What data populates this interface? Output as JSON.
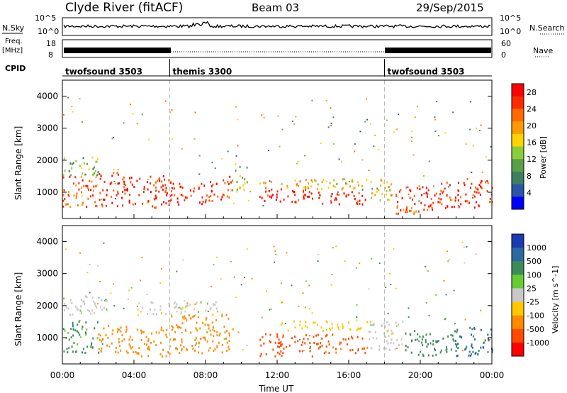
{
  "header": {
    "station": "Clyde River (fitACF)",
    "beam": "Beam 03",
    "date": "29/Sep/2015"
  },
  "side_labels": {
    "nsky": "N.Sky",
    "freq": "Freq.",
    "freq_unit": "[MHz]",
    "cpid": "CPID",
    "nsearch": "N.Search",
    "nave": "Nave"
  },
  "noise_axis": {
    "left_ticks": [
      "10^5",
      "10^0"
    ],
    "right_ticks": [
      "10^5",
      "10^0"
    ]
  },
  "freq_axis": {
    "left_ticks": [
      "18",
      "8"
    ],
    "right_ticks": [
      "60",
      "0"
    ]
  },
  "cpid_segments": [
    {
      "label": "twofsound 3503",
      "start_hour": 0,
      "end_hour": 6
    },
    {
      "label": "themis 3300",
      "start_hour": 6,
      "end_hour": 18
    },
    {
      "label": "twofsound 3503",
      "start_hour": 18,
      "end_hour": 24
    }
  ],
  "colors": {
    "power_scale": [
      "#0000ff",
      "#2a55a8",
      "#3d8060",
      "#5aa04a",
      "#8ccc3a",
      "#ffd400",
      "#ff9a00",
      "#ff6a00",
      "#ff2a00",
      "#ff0000"
    ],
    "velocity_scale": [
      "#ff0000",
      "#ff4a00",
      "#ff8a00",
      "#ffc800",
      "#c8c8c8",
      "#66cc33",
      "#3c8c5a",
      "#2a6aa0",
      "#1a3ab0"
    ]
  },
  "chart_data": [
    {
      "type": "heatmap",
      "title": "Power",
      "ylabel": "Slant Range [km]",
      "x_range_hours": [
        0,
        24
      ],
      "ylim": [
        180,
        4500
      ],
      "yticks": [
        1000,
        2000,
        3000,
        4000
      ],
      "colorbar": {
        "label": "Power [dB]",
        "ticks": [
          4,
          8,
          12,
          16,
          20,
          24,
          28
        ],
        "range": [
          0,
          30
        ]
      },
      "scatter_regions": [
        {
          "start_hour": 0.0,
          "end_hour": 2.0,
          "range_min": 500,
          "range_max": 1500,
          "value": 24
        },
        {
          "start_hour": 0.0,
          "end_hour": 2.0,
          "range_min": 1500,
          "range_max": 2100,
          "value": 12
        },
        {
          "start_hour": 2.0,
          "end_hour": 4.0,
          "range_min": 500,
          "range_max": 1600,
          "value": 26
        },
        {
          "start_hour": 4.0,
          "end_hour": 6.0,
          "range_min": 500,
          "range_max": 1500,
          "value": 27
        },
        {
          "start_hour": 6.0,
          "end_hour": 8.0,
          "range_min": 600,
          "range_max": 1300,
          "value": 26
        },
        {
          "start_hour": 8.0,
          "end_hour": 9.5,
          "range_min": 700,
          "range_max": 1500,
          "value": 26
        },
        {
          "start_hour": 9.5,
          "end_hour": 10.3,
          "range_min": 1000,
          "range_max": 1900,
          "value": 14
        },
        {
          "start_hour": 11.0,
          "end_hour": 14.0,
          "range_min": 600,
          "range_max": 1100,
          "value": 28
        },
        {
          "start_hour": 11.0,
          "end_hour": 14.0,
          "range_min": 1100,
          "range_max": 1400,
          "value": 18
        },
        {
          "start_hour": 14.0,
          "end_hour": 17.0,
          "range_min": 600,
          "range_max": 1000,
          "value": 28
        },
        {
          "start_hour": 14.0,
          "end_hour": 17.0,
          "range_min": 1000,
          "range_max": 1400,
          "value": 16
        },
        {
          "start_hour": 17.0,
          "end_hour": 18.5,
          "range_min": 700,
          "range_max": 1400,
          "value": 18
        },
        {
          "start_hour": 18.5,
          "end_hour": 20.0,
          "range_min": 300,
          "range_max": 1200,
          "value": 24
        },
        {
          "start_hour": 20.0,
          "end_hour": 22.0,
          "range_min": 400,
          "range_max": 1300,
          "value": 26
        },
        {
          "start_hour": 22.0,
          "end_hour": 24.0,
          "range_min": 500,
          "range_max": 1400,
          "value": 26
        }
      ]
    },
    {
      "type": "heatmap",
      "title": "Velocity",
      "ylabel": "Slant Range [km]",
      "xlabel": "Time UT",
      "x_range_hours": [
        0,
        24
      ],
      "xticks": [
        "00:00",
        "04:00",
        "08:00",
        "12:00",
        "16:00",
        "20:00",
        "00:00"
      ],
      "ylim": [
        180,
        4500
      ],
      "yticks": [
        1000,
        2000,
        3000,
        4000
      ],
      "colorbar": {
        "label": "Velocity [m s^-1]",
        "ticks": [
          1000,
          500,
          100,
          25,
          -25,
          -100,
          -500,
          -1000
        ]
      },
      "scatter_regions": [
        {
          "start_hour": 0.0,
          "end_hour": 2.0,
          "range_min": 500,
          "range_max": 1500,
          "value": 150
        },
        {
          "start_hour": 0.0,
          "end_hour": 2.5,
          "range_min": 1700,
          "range_max": 2300,
          "value": 0
        },
        {
          "start_hour": 2.0,
          "end_hour": 4.0,
          "range_min": 500,
          "range_max": 1400,
          "value": -300
        },
        {
          "start_hour": 4.0,
          "end_hour": 6.0,
          "range_min": 400,
          "range_max": 1300,
          "value": -200
        },
        {
          "start_hour": 4.0,
          "end_hour": 9.0,
          "range_min": 1700,
          "range_max": 2100,
          "value": 0
        },
        {
          "start_hour": 6.0,
          "end_hour": 9.5,
          "range_min": 500,
          "range_max": 1700,
          "value": -300
        },
        {
          "start_hour": 11.0,
          "end_hour": 14.0,
          "range_min": 400,
          "range_max": 1100,
          "value": -700
        },
        {
          "start_hour": 12.0,
          "end_hour": 17.0,
          "range_min": 1200,
          "range_max": 1500,
          "value": -80
        },
        {
          "start_hour": 14.0,
          "end_hour": 17.0,
          "range_min": 500,
          "range_max": 1100,
          "value": -600
        },
        {
          "start_hour": 17.0,
          "end_hour": 19.0,
          "range_min": 600,
          "range_max": 1500,
          "value": 0
        },
        {
          "start_hour": 19.0,
          "end_hour": 22.0,
          "range_min": 400,
          "range_max": 1200,
          "value": 200
        },
        {
          "start_hour": 22.0,
          "end_hour": 24.0,
          "range_min": 400,
          "range_max": 1300,
          "value": 600
        }
      ]
    }
  ]
}
